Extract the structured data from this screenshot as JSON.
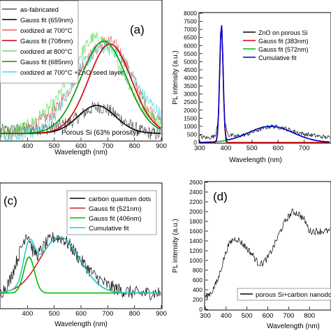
{
  "chart_data": [
    {
      "type": "line",
      "panel_label": "(a)",
      "xlabel": "Wavelength (nm)",
      "ylabel": "",
      "xlim": [
        300,
        900
      ],
      "ylim": [
        0,
        1.0
      ],
      "xticks": [
        400,
        500,
        600,
        700,
        800,
        900
      ],
      "annotation": "Porous Si (63% porosity)",
      "legend_position": "top-left",
      "grid": false,
      "series": [
        {
          "name": "as-fabricated",
          "color": "#555555",
          "kind": "noisy",
          "values": [
            [
              330,
              0.07
            ],
            [
              400,
              0.08
            ],
            [
              500,
              0.09
            ],
            [
              560,
              0.13
            ],
            [
              600,
              0.18
            ],
            [
              640,
              0.23
            ],
            [
              670,
              0.24
            ],
            [
              700,
              0.22
            ],
            [
              740,
              0.17
            ],
            [
              780,
              0.11
            ],
            [
              830,
              0.06
            ],
            [
              900,
              0.04
            ]
          ]
        },
        {
          "name": "Gauss fit (659nm)",
          "color": "#000000",
          "kind": "gauss",
          "center": 659,
          "amplitude": 0.2,
          "sigma": 70,
          "baseline": 0.05
        },
        {
          "name": "oxidized at 700°C",
          "color": "#ff5a5a",
          "kind": "noisy",
          "values": [
            [
              330,
              0.05
            ],
            [
              400,
              0.08
            ],
            [
              500,
              0.2
            ],
            [
              560,
              0.38
            ],
            [
              600,
              0.52
            ],
            [
              650,
              0.64
            ],
            [
              700,
              0.72
            ],
            [
              740,
              0.66
            ],
            [
              780,
              0.5
            ],
            [
              830,
              0.3
            ],
            [
              880,
              0.16
            ],
            [
              900,
              0.12
            ]
          ]
        },
        {
          "name": "Gauss fit (708nm)",
          "color": "#cc0000",
          "kind": "gauss",
          "center": 708,
          "amplitude": 0.64,
          "sigma": 80,
          "baseline": 0.05
        },
        {
          "name": "oxidized at 800°C",
          "color": "#66dd66",
          "kind": "noisy",
          "values": [
            [
              330,
              0.06
            ],
            [
              400,
              0.1
            ],
            [
              500,
              0.26
            ],
            [
              560,
              0.47
            ],
            [
              600,
              0.62
            ],
            [
              640,
              0.73
            ],
            [
              680,
              0.72
            ],
            [
              720,
              0.62
            ],
            [
              760,
              0.48
            ],
            [
              800,
              0.33
            ],
            [
              850,
              0.2
            ],
            [
              900,
              0.12
            ]
          ]
        },
        {
          "name": "Gauss fit (685nm)",
          "color": "#009900",
          "kind": "gauss",
          "center": 685,
          "amplitude": 0.66,
          "sigma": 85,
          "baseline": 0.05
        },
        {
          "name": "oxidized at 700°C +ZnO seed layer",
          "color": "#44dddd",
          "kind": "noisy",
          "values": [
            [
              330,
              0.03
            ],
            [
              400,
              0.05
            ],
            [
              450,
              0.08
            ],
            [
              500,
              0.17
            ],
            [
              560,
              0.38
            ],
            [
              600,
              0.53
            ],
            [
              650,
              0.63
            ],
            [
              700,
              0.68
            ],
            [
              740,
              0.62
            ],
            [
              780,
              0.5
            ],
            [
              830,
              0.33
            ],
            [
              900,
              0.18
            ]
          ]
        }
      ]
    },
    {
      "type": "line",
      "panel_label": "",
      "xlabel": "Wavelength (nm)",
      "ylabel": "PL intensity (a.u.)",
      "xlim": [
        300,
        800
      ],
      "ylim": [
        0,
        8000
      ],
      "xticks": [
        300,
        400,
        500,
        600,
        700
      ],
      "yticks": [
        0,
        500,
        1000,
        1500,
        2000,
        2500,
        3000,
        3500,
        4000,
        4500,
        5000,
        5500,
        6000,
        6500,
        7000,
        7500,
        8000
      ],
      "legend_position": "top-right",
      "grid": false,
      "series": [
        {
          "name": "ZnO on porous Si",
          "color": "#000000",
          "kind": "noisy",
          "values": [
            [
              305,
              350
            ],
            [
              330,
              280
            ],
            [
              360,
              400
            ],
            [
              372,
              1600
            ],
            [
              378,
              4800
            ],
            [
              383,
              7600
            ],
            [
              388,
              4800
            ],
            [
              395,
              1300
            ],
            [
              410,
              450
            ],
            [
              440,
              380
            ],
            [
              480,
              500
            ],
            [
              520,
              750
            ],
            [
              560,
              960
            ],
            [
              580,
              1000
            ],
            [
              620,
              900
            ],
            [
              660,
              700
            ],
            [
              700,
              520
            ],
            [
              760,
              370
            ],
            [
              800,
              300
            ]
          ]
        },
        {
          "name": "Gauss fit (383nm)",
          "color": "#dd0000",
          "kind": "gauss",
          "center": 383,
          "amplitude": 7300,
          "sigma": 6.5,
          "baseline": 0
        },
        {
          "name": "Gauss fit (572nm)",
          "color": "#00bb00",
          "kind": "gauss",
          "center": 572,
          "amplitude": 1000,
          "sigma": 85,
          "baseline": 0
        },
        {
          "name": "Cumulative fit",
          "color": "#0000cc",
          "kind": "sum",
          "of": [
            1,
            2
          ],
          "baseline": 0
        }
      ]
    },
    {
      "type": "line",
      "panel_label": "(c)",
      "xlabel": "Wavelength (nm)",
      "ylabel": "",
      "xlim": [
        300,
        900
      ],
      "ylim": [
        0,
        1.0
      ],
      "xticks": [
        400,
        500,
        600,
        700,
        800,
        900
      ],
      "legend_position": "top-right",
      "grid": false,
      "series": [
        {
          "name": "carbon quantum dots",
          "color": "#000000",
          "kind": "noisy",
          "values": [
            [
              300,
              0.12
            ],
            [
              330,
              0.2
            ],
            [
              360,
              0.38
            ],
            [
              380,
              0.5
            ],
            [
              395,
              0.6
            ],
            [
              405,
              0.58
            ],
            [
              420,
              0.46
            ],
            [
              440,
              0.43
            ],
            [
              470,
              0.52
            ],
            [
              500,
              0.57
            ],
            [
              530,
              0.56
            ],
            [
              560,
              0.5
            ],
            [
              600,
              0.38
            ],
            [
              650,
              0.26
            ],
            [
              700,
              0.18
            ],
            [
              750,
              0.14
            ],
            [
              800,
              0.12
            ],
            [
              850,
              0.12
            ],
            [
              900,
              0.12
            ]
          ]
        },
        {
          "name": "Gauss fit (521nm)",
          "color": "#cc2222",
          "kind": "gauss",
          "center": 521,
          "amplitude": 0.45,
          "sigma": 75,
          "baseline": 0.12
        },
        {
          "name": "Gauss fit (406nm)",
          "color": "#00bb00",
          "kind": "gauss",
          "center": 406,
          "amplitude": 0.29,
          "sigma": 20,
          "baseline": 0.12
        },
        {
          "name": "Cumulative fit",
          "color": "#22cccc",
          "kind": "sum",
          "of": [
            1,
            2
          ],
          "baseline": 0.12
        }
      ]
    },
    {
      "type": "line",
      "panel_label": "(d)",
      "xlabel": "Wavelength (nm)",
      "ylabel": "PL intensity (a.u.)",
      "xlim": [
        300,
        900
      ],
      "ylim": [
        0,
        2600
      ],
      "xticks": [
        300,
        400,
        500,
        600,
        700,
        800
      ],
      "yticks": [
        0,
        200,
        400,
        600,
        800,
        1000,
        1200,
        1400,
        1600,
        1800,
        2000,
        2200,
        2400,
        2600
      ],
      "legend_position": "bottom-right",
      "grid": false,
      "series": [
        {
          "name": "porous Si+carbon nanodots",
          "color": "#000000",
          "kind": "noisy",
          "values": [
            [
              300,
              250
            ],
            [
              330,
              350
            ],
            [
              360,
              600
            ],
            [
              390,
              1050
            ],
            [
              410,
              1300
            ],
            [
              430,
              1420
            ],
            [
              450,
              1450
            ],
            [
              470,
              1380
            ],
            [
              500,
              1250
            ],
            [
              530,
              1100
            ],
            [
              550,
              960
            ],
            [
              570,
              930
            ],
            [
              600,
              1050
            ],
            [
              630,
              1300
            ],
            [
              660,
              1600
            ],
            [
              690,
              1850
            ],
            [
              720,
              2000
            ],
            [
              750,
              1950
            ],
            [
              780,
              1800
            ],
            [
              800,
              1600
            ]
          ]
        }
      ]
    }
  ]
}
